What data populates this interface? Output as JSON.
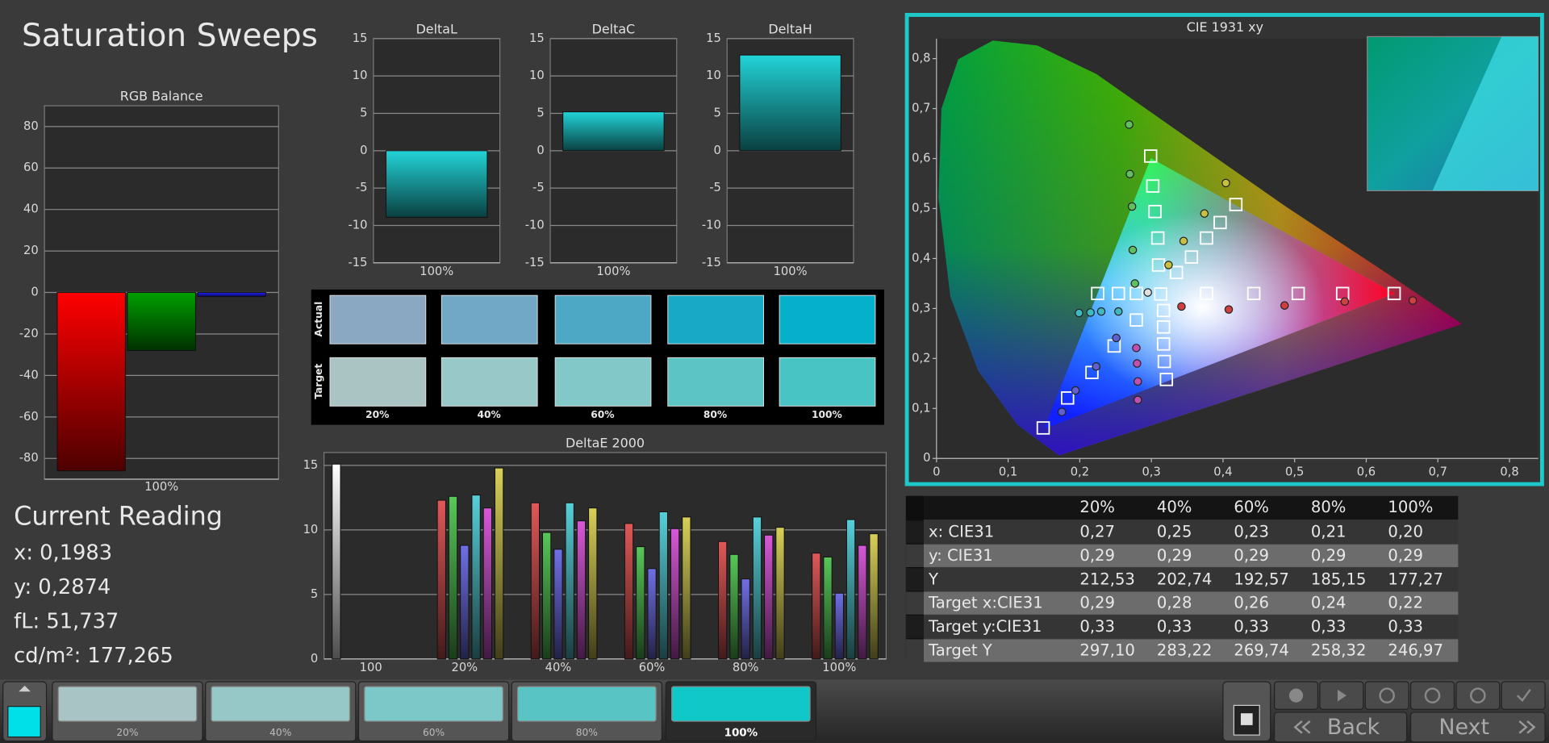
{
  "title": "Saturation Sweeps",
  "rgb_balance": {
    "type": "bar",
    "title": "RGB Balance",
    "categories": [
      "100%"
    ],
    "series": [
      {
        "color": "#ff0000",
        "values": [
          -86
        ]
      },
      {
        "color": "#00a000",
        "values": [
          -28
        ]
      },
      {
        "color": "#2020ff",
        "values": [
          -2
        ]
      }
    ],
    "ylim": [
      -90,
      90
    ],
    "yticks": [
      -80,
      -60,
      -40,
      -20,
      0,
      20,
      40,
      60,
      80
    ],
    "grid": true
  },
  "delta_charts": [
    {
      "type": "bar",
      "title": "DeltaL",
      "categories": [
        "100%"
      ],
      "values": [
        -8.9
      ],
      "color": "#22d4d8",
      "ylim": [
        -15,
        15
      ],
      "yticks": [
        -15,
        -10,
        -5,
        0,
        5,
        10,
        15
      ],
      "grid": true
    },
    {
      "type": "bar",
      "title": "DeltaC",
      "categories": [
        "100%"
      ],
      "values": [
        5.2
      ],
      "color": "#22d4d8",
      "ylim": [
        -15,
        15
      ],
      "yticks": [
        -15,
        -10,
        -5,
        0,
        5,
        10,
        15
      ],
      "grid": true
    },
    {
      "type": "bar",
      "title": "DeltaH",
      "categories": [
        "100%"
      ],
      "values": [
        12.8
      ],
      "color": "#22d4d8",
      "ylim": [
        -15,
        15
      ],
      "yticks": [
        -15,
        -10,
        -5,
        0,
        5,
        10,
        15
      ],
      "grid": true
    }
  ],
  "swatches": {
    "columns": [
      "20%",
      "40%",
      "60%",
      "80%",
      "100%"
    ],
    "rows": [
      {
        "label": "Actual",
        "colors": [
          "#8aa8c2",
          "#70a8c6",
          "#4ca8c4",
          "#18a9c6",
          "#04b0cb"
        ]
      },
      {
        "label": "Target",
        "colors": [
          "#aac4c4",
          "#98c8c8",
          "#82c8c8",
          "#5cc4c4",
          "#48c4c4"
        ]
      }
    ]
  },
  "delta_e": {
    "type": "bar",
    "title": "DeltaE 2000",
    "categories": [
      "100",
      "20%",
      "40%",
      "60%",
      "80%",
      "100%"
    ],
    "series": [
      {
        "color": "#ffffff",
        "values": [
          15.1,
          null,
          null,
          null,
          null,
          null
        ]
      },
      {
        "color": "#e05858",
        "values": [
          null,
          12.3,
          12.1,
          10.5,
          9.1,
          8.2
        ]
      },
      {
        "color": "#58c858",
        "values": [
          null,
          12.6,
          9.8,
          8.7,
          8.1,
          7.9
        ]
      },
      {
        "color": "#7070e8",
        "values": [
          null,
          8.8,
          8.5,
          7.0,
          6.2,
          5.1
        ]
      },
      {
        "color": "#58d0d8",
        "values": [
          null,
          12.7,
          12.1,
          11.4,
          11.0,
          10.8
        ]
      },
      {
        "color": "#d858d8",
        "values": [
          null,
          11.7,
          10.7,
          10.1,
          9.6,
          8.8
        ]
      },
      {
        "color": "#d8d058",
        "values": [
          null,
          14.8,
          11.7,
          11.0,
          10.2,
          9.7
        ]
      }
    ],
    "ylim": [
      0,
      16
    ],
    "yticks": [
      0,
      5,
      10,
      15
    ],
    "grid": true
  },
  "cie": {
    "type": "scatter",
    "title": "CIE 1931 xy",
    "xlim": [
      0,
      0.84
    ],
    "ylim": [
      0,
      0.84
    ],
    "xticks": [
      0,
      {
        "value": 0.1,
        "label": "0,1"
      },
      {
        "value": 0.2,
        "label": "0,2"
      },
      {
        "value": 0.3,
        "label": "0,3"
      },
      {
        "value": 0.4,
        "label": "0,4"
      },
      {
        "value": 0.5,
        "label": "0,5"
      },
      {
        "value": 0.6,
        "label": "0,6"
      },
      {
        "value": 0.7,
        "label": "0,7"
      },
      {
        "value": 0.8,
        "label": "0,8"
      }
    ],
    "yticks": [
      0,
      {
        "value": 0.1,
        "label": "0,1"
      },
      {
        "value": 0.2,
        "label": "0,2"
      },
      {
        "value": 0.3,
        "label": "0,3"
      },
      {
        "value": 0.4,
        "label": "0,4"
      },
      {
        "value": 0.5,
        "label": "0,5"
      },
      {
        "value": 0.6,
        "label": "0,6"
      },
      {
        "value": 0.7,
        "label": "0,7"
      },
      {
        "value": 0.8,
        "label": "0,8"
      }
    ],
    "series": [
      {
        "marker": "square",
        "color": "#ffffff",
        "x": [
          0.299,
          0.302,
          0.305,
          0.309,
          0.31,
          0.313,
          0.377,
          0.443,
          0.505,
          0.567,
          0.639,
          0.279,
          0.254,
          0.225,
          0.335,
          0.356,
          0.377,
          0.396,
          0.418,
          0.279,
          0.248,
          0.217,
          0.183,
          0.149,
          0.317,
          0.317,
          0.317,
          0.318,
          0.321
        ],
        "y": [
          0.605,
          0.545,
          0.494,
          0.441,
          0.387,
          0.329,
          0.33,
          0.33,
          0.33,
          0.33,
          0.33,
          0.33,
          0.33,
          0.33,
          0.372,
          0.403,
          0.441,
          0.472,
          0.508,
          0.277,
          0.225,
          0.172,
          0.121,
          0.061,
          0.296,
          0.263,
          0.229,
          0.194,
          0.158
        ]
      },
      {
        "marker": "circle",
        "color": "#60c060",
        "x": [
          0.269,
          0.27,
          0.273,
          0.274,
          0.277
        ],
        "y": [
          0.668,
          0.569,
          0.504,
          0.417,
          0.35
        ]
      },
      {
        "marker": "circle",
        "color": "#d04040",
        "x": [
          0.342,
          0.408,
          0.486,
          0.57,
          0.665
        ],
        "y": [
          0.304,
          0.298,
          0.306,
          0.314,
          0.316
        ]
      },
      {
        "marker": "circle",
        "color": "#c8c040",
        "x": [
          0.324,
          0.345,
          0.374,
          0.404
        ],
        "y": [
          0.387,
          0.435,
          0.49,
          0.551
        ]
      },
      {
        "marker": "circle",
        "color": "#40b8c0",
        "x": [
          0.254,
          0.23,
          0.215,
          0.199
        ],
        "y": [
          0.294,
          0.294,
          0.292,
          0.291
        ]
      },
      {
        "marker": "circle",
        "color": "#6060d0",
        "x": [
          0.251,
          0.223,
          0.194,
          0.175
        ],
        "y": [
          0.241,
          0.184,
          0.136,
          0.093
        ]
      },
      {
        "marker": "circle",
        "color": "#c050b0",
        "x": [
          0.279,
          0.28,
          0.281,
          0.281
        ],
        "y": [
          0.221,
          0.19,
          0.154,
          0.117
        ]
      },
      {
        "marker": "circle",
        "color": "#e0e0e0",
        "x": [
          0.295
        ],
        "y": [
          0.332
        ]
      }
    ]
  },
  "current_reading": {
    "title": "Current Reading",
    "lines": [
      "x: 0,1983",
      "y: 0,2874",
      "fL: 51,737",
      "cd/m²: 177,265"
    ]
  },
  "table": {
    "columns": [
      "20%",
      "40%",
      "60%",
      "80%",
      "100%"
    ],
    "rows": [
      {
        "label": "x: CIE31",
        "cells": [
          "0,27",
          "0,25",
          "0,23",
          "0,21",
          "0,20"
        ]
      },
      {
        "label": "y: CIE31",
        "cells": [
          "0,29",
          "0,29",
          "0,29",
          "0,29",
          "0,29"
        ]
      },
      {
        "label": "Y",
        "cells": [
          "212,53",
          "202,74",
          "192,57",
          "185,15",
          "177,27"
        ]
      },
      {
        "label": "Target x:CIE31",
        "cells": [
          "0,29",
          "0,28",
          "0,26",
          "0,24",
          "0,22"
        ]
      },
      {
        "label": "Target y:CIE31",
        "cells": [
          "0,33",
          "0,33",
          "0,33",
          "0,33",
          "0,33"
        ]
      },
      {
        "label": "Target Y",
        "cells": [
          "297,10",
          "283,22",
          "269,74",
          "258,32",
          "246,97"
        ]
      }
    ]
  },
  "bottom_bar": {
    "current_color": "#00e0e8",
    "swatches": [
      {
        "label": "20%",
        "color": "#a8c4c4"
      },
      {
        "label": "40%",
        "color": "#96c8c8"
      },
      {
        "label": "60%",
        "color": "#7cc8c8"
      },
      {
        "label": "80%",
        "color": "#58c4c4"
      },
      {
        "label": "100%",
        "color": "#10c8c8"
      }
    ],
    "buttons": [
      "Back",
      "Next"
    ]
  }
}
